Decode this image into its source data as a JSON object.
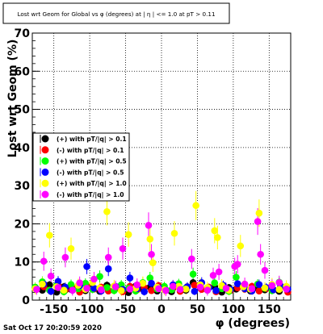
{
  "chart_data": {
    "type": "scatter",
    "title": "Lost wrt Geom for Global vs φ (degrees) at | η | <= 1.0 at pT > 0.11",
    "xlabel": "φ (degrees)",
    "ylabel": "Lost wrt Geom (%)",
    "xlim": [
      -180,
      180
    ],
    "ylim": [
      0,
      70
    ],
    "xticks": [
      "-150",
      "-100",
      "-50",
      "0",
      "50",
      "100",
      "150"
    ],
    "yticks": [
      "0",
      "10",
      "20",
      "30",
      "40",
      "50",
      "60",
      "70"
    ],
    "grid": true,
    "legend_position": "left-middle",
    "series": [
      {
        "name": "(+) with pT/|q| > 0.1",
        "color": "#000000",
        "points": [
          [
            -176,
            3.2,
            0.9
          ],
          [
            -166,
            2.6,
            0.8
          ],
          [
            -156,
            4.0,
            1.0
          ],
          [
            -146,
            2.1,
            0.7
          ],
          [
            -136,
            3.5,
            1.0
          ],
          [
            -126,
            2.8,
            0.8
          ],
          [
            -116,
            3.6,
            1.0
          ],
          [
            -106,
            2.5,
            0.8
          ],
          [
            -96,
            3.1,
            0.9
          ],
          [
            -86,
            2.3,
            0.8
          ],
          [
            -76,
            3.9,
            1.0
          ],
          [
            -66,
            2.7,
            0.8
          ],
          [
            -56,
            3.3,
            0.9
          ],
          [
            -46,
            2.0,
            0.7
          ],
          [
            -36,
            3.7,
            1.0
          ],
          [
            -26,
            2.9,
            0.9
          ],
          [
            -16,
            3.4,
            0.9
          ],
          [
            -6,
            2.4,
            0.8
          ],
          [
            4,
            3.0,
            0.9
          ],
          [
            14,
            2.2,
            0.8
          ],
          [
            24,
            3.8,
            1.0
          ],
          [
            34,
            2.6,
            0.8
          ],
          [
            44,
            4.6,
            1.1
          ],
          [
            54,
            3.2,
            0.9
          ],
          [
            64,
            2.8,
            0.8
          ],
          [
            74,
            3.5,
            1.0
          ],
          [
            84,
            2.1,
            0.7
          ],
          [
            94,
            3.3,
            0.9
          ],
          [
            104,
            2.9,
            0.9
          ],
          [
            114,
            3.6,
            1.0
          ],
          [
            124,
            2.4,
            0.8
          ],
          [
            134,
            3.1,
            0.9
          ],
          [
            144,
            2.7,
            0.8
          ],
          [
            154,
            3.9,
            1.0
          ],
          [
            164,
            2.3,
            0.8
          ],
          [
            174,
            3.4,
            0.9
          ]
        ]
      },
      {
        "name": "(-) with pT/|q| > 0.1",
        "color": "#ff0000",
        "points": [
          [
            -174,
            2.8,
            0.8
          ],
          [
            -164,
            3.5,
            0.9
          ],
          [
            -154,
            2.3,
            0.8
          ],
          [
            -144,
            3.9,
            1.0
          ],
          [
            -134,
            2.6,
            0.8
          ],
          [
            -124,
            3.2,
            0.9
          ],
          [
            -114,
            2.1,
            0.7
          ],
          [
            -104,
            3.7,
            1.0
          ],
          [
            -94,
            2.9,
            0.9
          ],
          [
            -84,
            3.4,
            0.9
          ],
          [
            -74,
            2.4,
            0.8
          ],
          [
            -64,
            3.0,
            0.9
          ],
          [
            -54,
            2.2,
            0.8
          ],
          [
            -44,
            3.6,
            1.0
          ],
          [
            -34,
            2.7,
            0.8
          ],
          [
            -24,
            3.3,
            0.9
          ],
          [
            -14,
            2.5,
            0.8
          ],
          [
            -4,
            3.8,
            1.0
          ],
          [
            6,
            2.6,
            0.8
          ],
          [
            16,
            3.1,
            0.9
          ],
          [
            26,
            2.3,
            0.8
          ],
          [
            36,
            3.5,
            1.0
          ],
          [
            46,
            3.9,
            1.0
          ],
          [
            56,
            2.8,
            0.8
          ],
          [
            66,
            3.4,
            0.9
          ],
          [
            76,
            2.2,
            0.8
          ],
          [
            86,
            3.7,
            1.0
          ],
          [
            96,
            2.5,
            0.8
          ],
          [
            106,
            3.2,
            0.9
          ],
          [
            116,
            2.9,
            0.9
          ],
          [
            126,
            3.6,
            1.0
          ],
          [
            136,
            2.4,
            0.8
          ],
          [
            146,
            3.0,
            0.9
          ],
          [
            156,
            2.7,
            0.8
          ],
          [
            166,
            3.5,
            1.0
          ],
          [
            176,
            2.1,
            0.7
          ]
        ]
      },
      {
        "name": "(+) with pT/|q| > 0.5",
        "color": "#00ff00",
        "points": [
          [
            -176,
            3.4,
            1.2
          ],
          [
            -166,
            4.8,
            1.4
          ],
          [
            -156,
            2.6,
            1.0
          ],
          [
            -146,
            3.9,
            1.2
          ],
          [
            -136,
            2.2,
            1.0
          ],
          [
            -126,
            4.1,
            1.3
          ],
          [
            -116,
            3.0,
            1.1
          ],
          [
            -106,
            4.4,
            1.3
          ],
          [
            -96,
            2.8,
            1.0
          ],
          [
            -86,
            6.2,
            1.6
          ],
          [
            -76,
            3.3,
            1.1
          ],
          [
            -66,
            2.5,
            1.0
          ],
          [
            -56,
            4.0,
            1.3
          ],
          [
            -46,
            3.1,
            1.1
          ],
          [
            -36,
            2.4,
            1.0
          ],
          [
            -26,
            4.6,
            1.4
          ],
          [
            -16,
            5.8,
            1.6
          ],
          [
            -6,
            2.9,
            1.1
          ],
          [
            4,
            3.6,
            1.2
          ],
          [
            14,
            2.7,
            1.0
          ],
          [
            24,
            4.3,
            1.3
          ],
          [
            34,
            3.2,
            1.1
          ],
          [
            44,
            6.8,
            1.7
          ],
          [
            54,
            3.8,
            1.2
          ],
          [
            64,
            2.6,
            1.0
          ],
          [
            74,
            4.5,
            1.3
          ],
          [
            84,
            3.0,
            1.1
          ],
          [
            94,
            2.3,
            1.0
          ],
          [
            104,
            6.0,
            1.6
          ],
          [
            114,
            3.5,
            1.2
          ],
          [
            124,
            2.8,
            1.0
          ],
          [
            134,
            4.2,
            1.3
          ],
          [
            144,
            3.1,
            1.1
          ],
          [
            154,
            2.5,
            1.0
          ],
          [
            164,
            4.7,
            1.4
          ],
          [
            174,
            3.3,
            1.1
          ]
        ]
      },
      {
        "name": "(-) with pT/|q| > 0.5",
        "color": "#0000ff",
        "points": [
          [
            -174,
            2.9,
            1.1
          ],
          [
            -164,
            4.2,
            1.3
          ],
          [
            -154,
            2.3,
            1.0
          ],
          [
            -144,
            4.9,
            1.4
          ],
          [
            -134,
            3.4,
            1.2
          ],
          [
            -124,
            2.6,
            1.0
          ],
          [
            -114,
            3.8,
            1.2
          ],
          [
            -104,
            8.8,
            2.0
          ],
          [
            -94,
            3.1,
            1.1
          ],
          [
            -84,
            2.4,
            1.0
          ],
          [
            -74,
            8.2,
            1.9
          ],
          [
            -64,
            3.6,
            1.2
          ],
          [
            -54,
            2.8,
            1.0
          ],
          [
            -44,
            5.8,
            1.6
          ],
          [
            -34,
            3.0,
            1.1
          ],
          [
            -24,
            2.2,
            1.0
          ],
          [
            -14,
            4.4,
            1.3
          ],
          [
            -4,
            3.3,
            1.1
          ],
          [
            6,
            2.6,
            1.0
          ],
          [
            16,
            4.0,
            1.3
          ],
          [
            26,
            2.9,
            1.1
          ],
          [
            36,
            3.5,
            1.2
          ],
          [
            46,
            2.3,
            1.0
          ],
          [
            56,
            4.6,
            1.4
          ],
          [
            66,
            3.2,
            1.1
          ],
          [
            76,
            2.5,
            1.0
          ],
          [
            86,
            3.9,
            1.2
          ],
          [
            96,
            2.8,
            1.0
          ],
          [
            106,
            4.3,
            1.3
          ],
          [
            116,
            3.0,
            1.1
          ],
          [
            126,
            2.4,
            1.0
          ],
          [
            136,
            4.1,
            1.3
          ],
          [
            146,
            3.3,
            1.1
          ],
          [
            156,
            2.7,
            1.0
          ],
          [
            166,
            3.7,
            1.2
          ],
          [
            176,
            2.9,
            1.1
          ]
        ]
      },
      {
        "name": "(+) with pT/|q| > 1.0",
        "color": "#ffff00",
        "points": [
          [
            -176,
            3.0,
            1.5
          ],
          [
            -166,
            4.2,
            1.8
          ],
          [
            -156,
            17.0,
            3.2
          ],
          [
            -146,
            3.5,
            1.6
          ],
          [
            -136,
            2.6,
            1.4
          ],
          [
            -126,
            13.5,
            2.9
          ],
          [
            -116,
            3.9,
            1.7
          ],
          [
            -106,
            2.8,
            1.4
          ],
          [
            -96,
            4.6,
            1.8
          ],
          [
            -86,
            3.2,
            1.5
          ],
          [
            -76,
            23.2,
            3.6
          ],
          [
            -66,
            3.7,
            1.6
          ],
          [
            -56,
            2.5,
            1.4
          ],
          [
            -46,
            17.2,
            3.2
          ],
          [
            -36,
            3.1,
            1.5
          ],
          [
            -26,
            4.4,
            1.8
          ],
          [
            -16,
            16.0,
            3.1
          ],
          [
            -12,
            9.8,
            2.4
          ],
          [
            -6,
            3.4,
            1.6
          ],
          [
            4,
            2.7,
            1.4
          ],
          [
            18,
            17.5,
            3.2
          ],
          [
            24,
            3.6,
            1.6
          ],
          [
            34,
            2.9,
            1.5
          ],
          [
            48,
            24.8,
            3.8
          ],
          [
            54,
            4.0,
            1.7
          ],
          [
            64,
            3.3,
            1.5
          ],
          [
            74,
            18.2,
            3.3
          ],
          [
            78,
            16.4,
            3.1
          ],
          [
            84,
            3.8,
            1.7
          ],
          [
            94,
            2.6,
            1.4
          ],
          [
            110,
            14.2,
            2.9
          ],
          [
            114,
            3.5,
            1.6
          ],
          [
            124,
            2.9,
            1.5
          ],
          [
            136,
            22.8,
            3.6
          ],
          [
            144,
            3.2,
            1.5
          ],
          [
            154,
            4.1,
            1.7
          ],
          [
            164,
            2.8,
            1.4
          ],
          [
            174,
            3.6,
            1.6
          ]
        ]
      },
      {
        "name": "(-) with pT/|q| > 1.0",
        "color": "#ff00ff",
        "points": [
          [
            -174,
            2.8,
            1.4
          ],
          [
            -164,
            10.2,
            2.5
          ],
          [
            -154,
            6.3,
            2.0
          ],
          [
            -144,
            3.3,
            1.5
          ],
          [
            -134,
            11.2,
            2.6
          ],
          [
            -124,
            2.6,
            1.4
          ],
          [
            -114,
            4.5,
            1.7
          ],
          [
            -104,
            3.1,
            1.5
          ],
          [
            -94,
            5.5,
            1.9
          ],
          [
            -84,
            2.7,
            1.4
          ],
          [
            -74,
            11.2,
            2.6
          ],
          [
            -64,
            3.5,
            1.6
          ],
          [
            -54,
            13.5,
            2.9
          ],
          [
            -44,
            2.9,
            1.5
          ],
          [
            -34,
            4.0,
            1.7
          ],
          [
            -18,
            19.6,
            3.4
          ],
          [
            -14,
            12.0,
            2.7
          ],
          [
            -4,
            3.0,
            1.5
          ],
          [
            6,
            2.5,
            1.4
          ],
          [
            16,
            3.6,
            1.6
          ],
          [
            26,
            2.8,
            1.4
          ],
          [
            42,
            10.8,
            2.6
          ],
          [
            54,
            3.4,
            1.6
          ],
          [
            64,
            2.6,
            1.4
          ],
          [
            72,
            6.5,
            2.0
          ],
          [
            80,
            7.4,
            2.1
          ],
          [
            90,
            3.1,
            1.5
          ],
          [
            102,
            8.8,
            2.3
          ],
          [
            106,
            9.4,
            2.4
          ],
          [
            116,
            4.2,
            1.7
          ],
          [
            126,
            3.0,
            1.5
          ],
          [
            134,
            20.6,
            3.5
          ],
          [
            138,
            12.0,
            2.7
          ],
          [
            144,
            7.8,
            2.2
          ],
          [
            154,
            3.8,
            1.6
          ],
          [
            164,
            4.6,
            1.8
          ],
          [
            174,
            2.9,
            1.5
          ]
        ]
      }
    ]
  },
  "footer": {
    "timestamp": "Sat Oct 17 20:20:59 2020"
  }
}
